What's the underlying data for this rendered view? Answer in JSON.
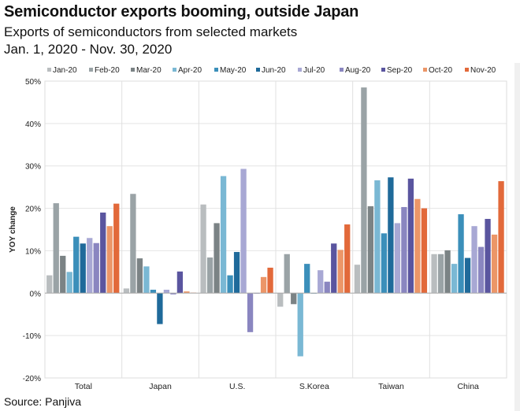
{
  "header": {
    "title": "Semiconductor exports booming, outside Japan",
    "subtitle": "Exports of semiconductors from selected markets",
    "date_range": "Jan. 1, 2020 - Nov. 30, 2020"
  },
  "footer": {
    "source": "Source: Panjiva"
  },
  "chart_data": {
    "type": "bar",
    "title": "",
    "xlabel": "",
    "ylabel": "YOY change",
    "ylim": [
      -20,
      50
    ],
    "yticks": [
      -20,
      -10,
      0,
      10,
      20,
      30,
      40,
      50
    ],
    "ytick_format": "percent",
    "grid": true,
    "legend": "top",
    "categories": [
      "Total",
      "Japan",
      "U.S.",
      "S.Korea",
      "Taiwan",
      "China"
    ],
    "series": [
      {
        "name": "Jan-20",
        "color": "#b9bdbf",
        "values": [
          4.2,
          1.1,
          20.9,
          -3.2,
          6.7,
          9.2
        ]
      },
      {
        "name": "Feb-20",
        "color": "#9aa3a6",
        "values": [
          21.2,
          23.4,
          8.4,
          9.2,
          48.5,
          9.2
        ]
      },
      {
        "name": "Mar-20",
        "color": "#7b8385",
        "values": [
          8.8,
          8.2,
          16.5,
          -2.6,
          20.5,
          10.1
        ]
      },
      {
        "name": "Apr-20",
        "color": "#7ab8d4",
        "values": [
          5.0,
          6.3,
          27.6,
          -14.9,
          26.6,
          6.9
        ]
      },
      {
        "name": "May-20",
        "color": "#3b8fba",
        "values": [
          13.3,
          0.8,
          4.2,
          6.9,
          14.1,
          18.6
        ]
      },
      {
        "name": "Jun-20",
        "color": "#1f6a9a",
        "values": [
          11.7,
          -7.3,
          9.7,
          0.0,
          27.3,
          8.3
        ]
      },
      {
        "name": "Jul-20",
        "color": "#a8a8d4",
        "values": [
          13.0,
          0.8,
          29.3,
          5.4,
          16.5,
          15.8
        ]
      },
      {
        "name": "Aug-20",
        "color": "#8a86c0",
        "values": [
          11.8,
          -0.3,
          -9.2,
          2.7,
          20.3,
          10.9
        ]
      },
      {
        "name": "Sep-20",
        "color": "#5a559f",
        "values": [
          19.0,
          5.1,
          0.0,
          11.7,
          27.0,
          17.5
        ]
      },
      {
        "name": "Oct-20",
        "color": "#ec9668",
        "values": [
          15.8,
          0.4,
          3.8,
          10.2,
          22.2,
          13.8
        ]
      },
      {
        "name": "Nov-20",
        "color": "#e2693a",
        "values": [
          21.1,
          0.1,
          6.0,
          16.2,
          20.0,
          26.4
        ]
      }
    ]
  }
}
